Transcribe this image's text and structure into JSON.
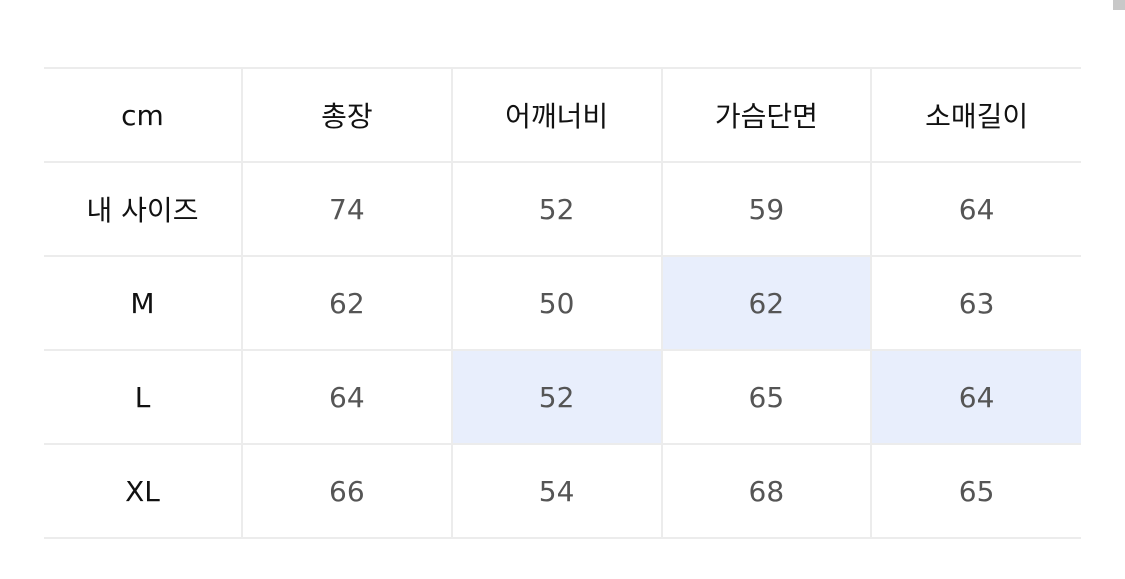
{
  "table": {
    "headers": [
      "cm",
      "총장",
      "어깨너비",
      "가슴단면",
      "소매길이"
    ],
    "rows": [
      {
        "label": "내 사이즈",
        "values": [
          "74",
          "52",
          "59",
          "64"
        ],
        "highlight": [
          false,
          false,
          false,
          false
        ]
      },
      {
        "label": "M",
        "values": [
          "62",
          "50",
          "62",
          "63"
        ],
        "highlight": [
          false,
          false,
          true,
          false
        ]
      },
      {
        "label": "L",
        "values": [
          "64",
          "52",
          "65",
          "64"
        ],
        "highlight": [
          false,
          true,
          false,
          true
        ]
      },
      {
        "label": "XL",
        "values": [
          "66",
          "54",
          "68",
          "65"
        ],
        "highlight": [
          false,
          false,
          false,
          false
        ]
      }
    ]
  },
  "colors": {
    "highlight": "#e8eefc",
    "border": "#ececec"
  }
}
